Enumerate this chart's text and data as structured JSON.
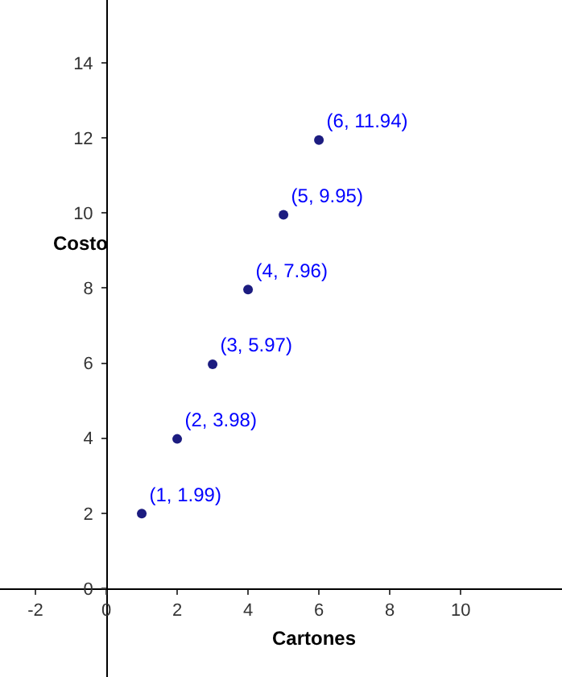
{
  "chart_data": {
    "type": "scatter",
    "xlabel": "Cartones",
    "ylabel": "Costo",
    "x": [
      1,
      2,
      3,
      4,
      5,
      6
    ],
    "values": [
      1.99,
      3.98,
      5.97,
      7.96,
      9.95,
      11.94
    ],
    "value_labels": [
      "(1, 1.99)",
      "(2, 3.98)",
      "(3, 5.97)",
      "(4, 7.96)",
      "(5, 9.95)",
      "(6, 11.94)"
    ],
    "color": "#1c1c80",
    "marker": "circle",
    "grid": false,
    "xlim": [
      -3,
      12.86
    ],
    "ylim": [
      -2.36,
      15.67
    ],
    "xticks": [
      -2,
      0,
      2,
      4,
      6,
      8,
      10
    ],
    "yticks": [
      0,
      2,
      4,
      6,
      8,
      10,
      12,
      14
    ]
  }
}
